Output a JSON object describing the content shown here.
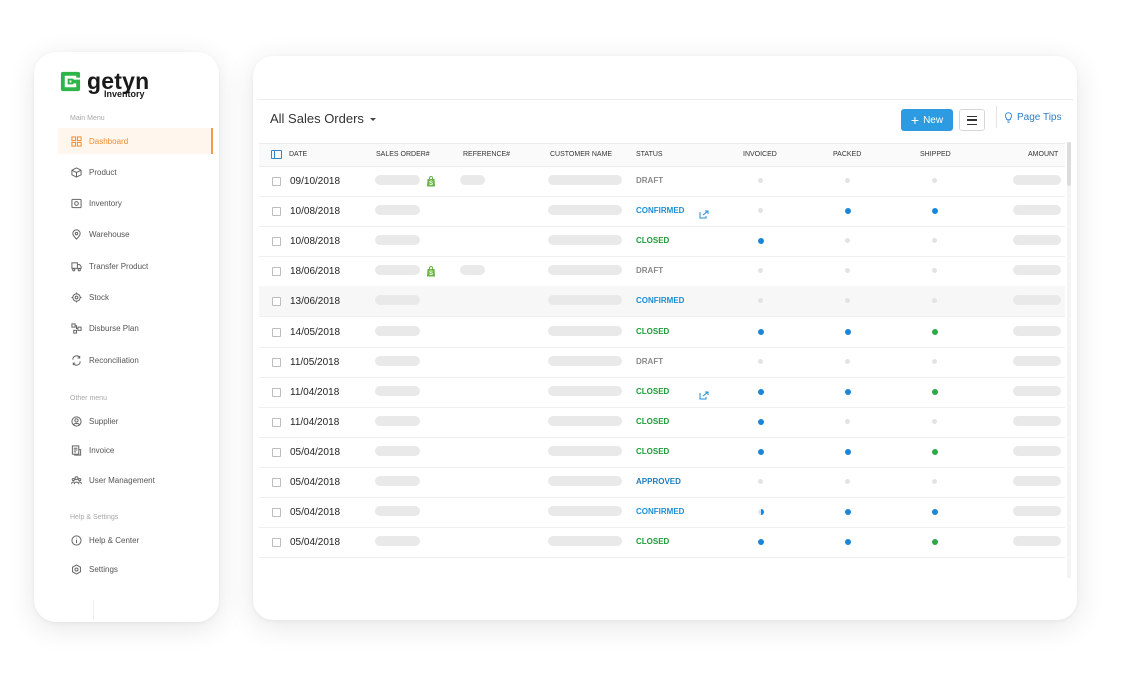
{
  "app": {
    "brand": "getyn",
    "brand_sub": "Inventory",
    "accent": "#f28c32",
    "logo_color": "#2fb44a"
  },
  "sidebar": {
    "main_label": "Main Menu",
    "other_label": "Other menu",
    "help_label": "Help & Settings",
    "main_items": [
      {
        "label": "Dashboard",
        "icon": "dashboard-icon",
        "active": true
      },
      {
        "label": "Product",
        "icon": "box-icon"
      },
      {
        "label": "Inventory",
        "icon": "inventory-icon"
      },
      {
        "label": "Warehouse",
        "icon": "location-pin-icon"
      },
      {
        "label": "Transfer Product",
        "icon": "truck-icon"
      },
      {
        "label": "Stock",
        "icon": "target-icon"
      },
      {
        "label": "Disburse Plan",
        "icon": "flow-icon"
      },
      {
        "label": "Reconciliation",
        "icon": "reconcile-icon"
      }
    ],
    "other_items": [
      {
        "label": "Supplier",
        "icon": "user-circle-icon"
      },
      {
        "label": "Invoice",
        "icon": "invoice-icon"
      },
      {
        "label": "User Management",
        "icon": "users-icon"
      }
    ],
    "help_items": [
      {
        "label": "Help & Center",
        "icon": "info-icon"
      },
      {
        "label": "Settings",
        "icon": "settings-icon"
      }
    ]
  },
  "toolbar": {
    "view_title": "All Sales Orders",
    "new_label": "New",
    "page_tips_label": "Page Tips"
  },
  "table": {
    "columns": [
      "DATE",
      "SALES ORDER#",
      "REFERENCE#",
      "CUSTOMER NAME",
      "STATUS",
      "INVOICED",
      "PACKED",
      "SHIPPED",
      "AMOUNT"
    ],
    "status_colors": {
      "DRAFT": "#8a8a8a",
      "CONFIRMED": "#1d8fd6",
      "CLOSED": "#1e9b3a",
      "APPROVED": "#1d7fc0"
    },
    "dot_colors": {
      "none": "#e3e3e3",
      "blue": "#1b86d6",
      "green": "#2fa84a",
      "half": "half-blue"
    },
    "rows": [
      {
        "date": "09/10/2018",
        "status": "DRAFT",
        "shop": true,
        "ref": true,
        "link": false,
        "invoiced": "none",
        "packed": "none",
        "shipped": "none"
      },
      {
        "date": "10/08/2018",
        "status": "CONFIRMED",
        "shop": false,
        "ref": false,
        "link": true,
        "invoiced": "none",
        "packed": "blue",
        "shipped": "blue"
      },
      {
        "date": "10/08/2018",
        "status": "CLOSED",
        "shop": false,
        "ref": false,
        "link": false,
        "invoiced": "blue",
        "packed": "none",
        "shipped": "none"
      },
      {
        "date": "18/06/2018",
        "status": "DRAFT",
        "shop": true,
        "ref": true,
        "link": false,
        "invoiced": "none",
        "packed": "none",
        "shipped": "none"
      },
      {
        "date": "13/06/2018",
        "status": "CONFIRMED",
        "shop": false,
        "ref": false,
        "link": false,
        "invoiced": "none",
        "packed": "none",
        "shipped": "none",
        "highlight": true
      },
      {
        "date": "14/05/2018",
        "status": "CLOSED",
        "shop": false,
        "ref": false,
        "link": false,
        "invoiced": "blue",
        "packed": "blue",
        "shipped": "green"
      },
      {
        "date": "11/05/2018",
        "status": "DRAFT",
        "shop": false,
        "ref": false,
        "link": false,
        "invoiced": "none",
        "packed": "none",
        "shipped": "none"
      },
      {
        "date": "11/04/2018",
        "status": "CLOSED",
        "shop": false,
        "ref": false,
        "link": true,
        "invoiced": "blue",
        "packed": "blue",
        "shipped": "green"
      },
      {
        "date": "11/04/2018",
        "status": "CLOSED",
        "shop": false,
        "ref": false,
        "link": false,
        "invoiced": "blue",
        "packed": "none",
        "shipped": "none"
      },
      {
        "date": "05/04/2018",
        "status": "CLOSED",
        "shop": false,
        "ref": false,
        "link": false,
        "invoiced": "blue",
        "packed": "blue",
        "shipped": "green"
      },
      {
        "date": "05/04/2018",
        "status": "APPROVED",
        "shop": false,
        "ref": false,
        "link": false,
        "invoiced": "none",
        "packed": "none",
        "shipped": "none"
      },
      {
        "date": "05/04/2018",
        "status": "CONFIRMED",
        "shop": false,
        "ref": false,
        "link": false,
        "invoiced": "half",
        "packed": "blue",
        "shipped": "blue"
      },
      {
        "date": "05/04/2018",
        "status": "CLOSED",
        "shop": false,
        "ref": false,
        "link": false,
        "invoiced": "blue",
        "packed": "blue",
        "shipped": "green"
      }
    ]
  }
}
